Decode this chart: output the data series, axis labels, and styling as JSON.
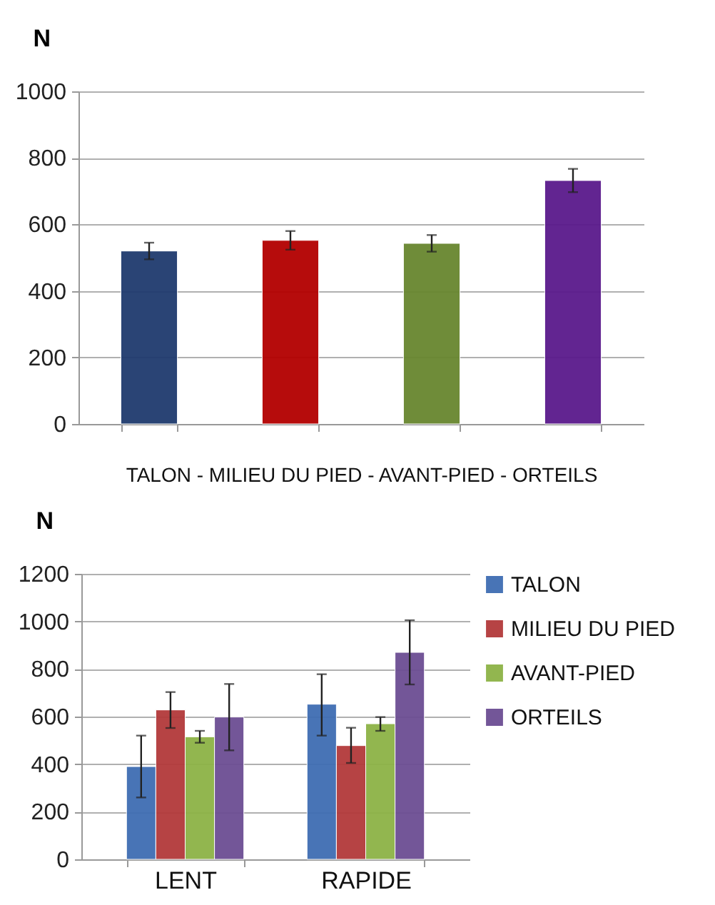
{
  "chart_data": [
    {
      "type": "bar",
      "ylabel": "N",
      "xlabel": "TALON - MILIEU DU PIED - AVANT-PIED - ORTEILS",
      "categories": [
        null,
        null,
        null,
        null
      ],
      "values": [
        520,
        552,
        543,
        732
      ],
      "colors": [
        "#1f3a6e",
        "#b30000",
        "#68862f",
        "#5a1a8c"
      ],
      "errors": [
        25,
        28,
        25,
        35
      ],
      "ylim": [
        0,
        1000
      ],
      "yticks": [
        0,
        200,
        400,
        600,
        800,
        1000
      ],
      "grid": "y"
    },
    {
      "type": "bar",
      "ylabel": "N",
      "categories": [
        "LENT",
        "RAPIDE"
      ],
      "series": [
        {
          "name": "TALON",
          "color": "#3f6db3",
          "values": [
            390,
            652
          ],
          "errors": [
            [
              260,
              520
            ],
            [
              520,
              778
            ]
          ]
        },
        {
          "name": "MILIEU DU PIED",
          "color": "#b3393b",
          "values": [
            628,
            478
          ],
          "errors": [
            [
              552,
              703
            ],
            [
              405,
              553
            ]
          ]
        },
        {
          "name": "AVANT-PIED",
          "color": "#8db346",
          "values": [
            515,
            570
          ],
          "errors": [
            [
              490,
              540
            ],
            [
              540,
              598
            ]
          ]
        },
        {
          "name": "ORTEILS",
          "color": "#6c4e93",
          "values": [
            598,
            870
          ],
          "errors": [
            [
              458,
              737
            ],
            [
              735,
              1005
            ]
          ]
        }
      ],
      "ylim": [
        0,
        1200
      ],
      "yticks": [
        0,
        200,
        400,
        600,
        800,
        1000,
        1200
      ],
      "grid": "y",
      "legend": "right"
    }
  ]
}
